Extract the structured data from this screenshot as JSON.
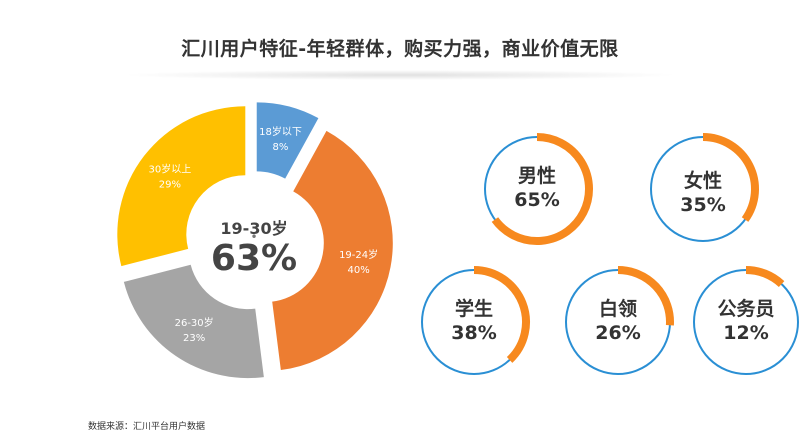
{
  "title": "汇川用户特征-年轻群体，购买力强，商业价值无限",
  "source_note": "数据来源：汇川平台用户数据",
  "center": {
    "label": "19-30岁",
    "dot": "•",
    "value": "63%"
  },
  "colors": {
    "ring_track": "#2a8fd4",
    "ring_fill": "#f7891e",
    "age_under18": "#5b9bd5",
    "age_19_24": "#ed7d31",
    "age_26_30": "#a5a5a5",
    "age_30plus": "#ffc000"
  },
  "chart_data": [
    {
      "type": "pie",
      "title": "",
      "categories": [
        "18岁以下",
        "19-24岁",
        "26-30岁",
        "30岁以上"
      ],
      "values": [
        8,
        40,
        23,
        29
      ],
      "value_labels": [
        "8%",
        "40%",
        "23%",
        "29%"
      ],
      "colors": [
        "#5b9bd5",
        "#ed7d31",
        "#a5a5a5",
        "#ffc000"
      ],
      "style": "exploded donut, starting at 12 o'clock, clockwise"
    },
    {
      "type": "pie",
      "style": "progress rings (blue track, orange fill)",
      "categories": [
        "男性",
        "女性",
        "学生",
        "白领",
        "公务员"
      ],
      "values": [
        65,
        35,
        38,
        26,
        12
      ],
      "value_labels": [
        "65%",
        "35%",
        "38%",
        "26%",
        "12%"
      ]
    }
  ]
}
